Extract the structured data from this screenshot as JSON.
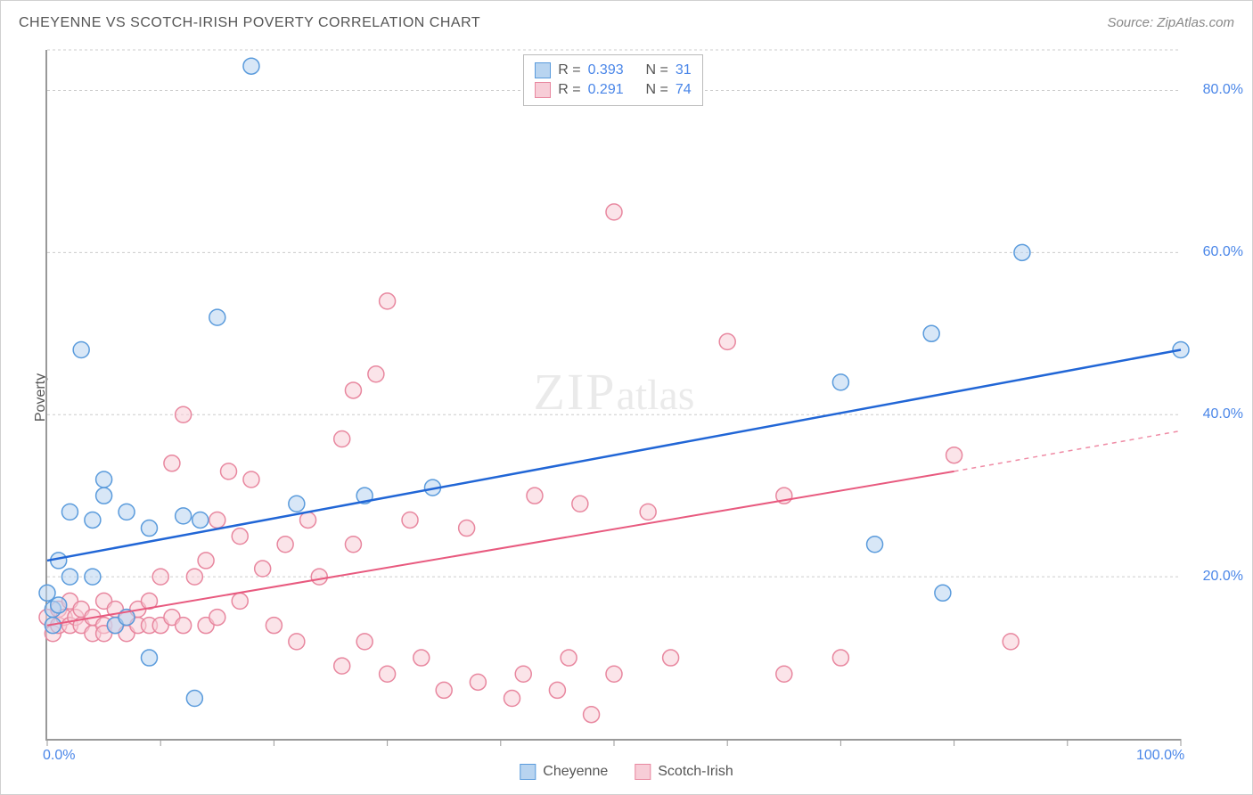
{
  "title": "CHEYENNE VS SCOTCH-IRISH POVERTY CORRELATION CHART",
  "source": "Source: ZipAtlas.com",
  "ylabel": "Poverty",
  "watermark_zip": "ZIP",
  "watermark_atlas": "atlas",
  "chart": {
    "type": "scatter",
    "background_color": "#ffffff",
    "grid_color": "#cccccc",
    "axis_color": "#999999",
    "xlim": [
      0,
      100
    ],
    "ylim": [
      0,
      85
    ],
    "xtick_labels": {
      "0": "0.0%",
      "100": "100.0%"
    },
    "xtick_positions": [
      0,
      10,
      20,
      30,
      40,
      50,
      60,
      70,
      80,
      90,
      100
    ],
    "ytick_labels": {
      "20": "20.0%",
      "40": "40.0%",
      "60": "60.0%",
      "80": "80.0%"
    },
    "ytick_positions": [
      20,
      40,
      60,
      80
    ],
    "marker_radius": 9,
    "marker_opacity": 0.55,
    "series": [
      {
        "name": "Cheyenne",
        "color_fill": "#b8d4f0",
        "color_stroke": "#5a9bdc",
        "R": "0.393",
        "N": "31",
        "trend": {
          "x1": 0,
          "y1": 22,
          "x2": 100,
          "y2": 48,
          "stroke": "#2166d6",
          "width": 2.5,
          "dash_extend": false
        },
        "points": [
          [
            0,
            18
          ],
          [
            0.5,
            16
          ],
          [
            0.5,
            14
          ],
          [
            1,
            22
          ],
          [
            1,
            16.5
          ],
          [
            2,
            28
          ],
          [
            2,
            20
          ],
          [
            3,
            48
          ],
          [
            4,
            27
          ],
          [
            4,
            20
          ],
          [
            5,
            32
          ],
          [
            5,
            30
          ],
          [
            6,
            14
          ],
          [
            7,
            28
          ],
          [
            7,
            15
          ],
          [
            9,
            10
          ],
          [
            9,
            26
          ],
          [
            12,
            27.5
          ],
          [
            13,
            5
          ],
          [
            13.5,
            27
          ],
          [
            15,
            52
          ],
          [
            18,
            83
          ],
          [
            22,
            29
          ],
          [
            28,
            30
          ],
          [
            34,
            31
          ],
          [
            70,
            44
          ],
          [
            73,
            24
          ],
          [
            78,
            50
          ],
          [
            79,
            18
          ],
          [
            86,
            60
          ],
          [
            100,
            48
          ]
        ]
      },
      {
        "name": "Scotch-Irish",
        "color_fill": "#f7cdd7",
        "color_stroke": "#e8879f",
        "R": "0.291",
        "N": "74",
        "trend": {
          "x1": 0,
          "y1": 14,
          "x2": 80,
          "y2": 33,
          "stroke": "#e85a7f",
          "width": 2,
          "dash_extend": true,
          "dash_x2": 100,
          "dash_y2": 38
        },
        "points": [
          [
            0,
            15
          ],
          [
            0.5,
            13
          ],
          [
            1,
            14
          ],
          [
            1,
            16
          ],
          [
            1.5,
            15
          ],
          [
            2,
            14
          ],
          [
            2,
            17
          ],
          [
            2.5,
            15
          ],
          [
            3,
            14
          ],
          [
            3,
            16
          ],
          [
            4,
            13
          ],
          [
            4,
            15
          ],
          [
            5,
            14
          ],
          [
            5,
            17
          ],
          [
            5,
            13
          ],
          [
            6,
            14
          ],
          [
            6,
            16
          ],
          [
            7,
            15
          ],
          [
            7,
            13
          ],
          [
            8,
            14
          ],
          [
            8,
            16
          ],
          [
            9,
            14
          ],
          [
            9,
            17
          ],
          [
            10,
            14
          ],
          [
            10,
            20
          ],
          [
            11,
            15
          ],
          [
            11,
            34
          ],
          [
            12,
            14
          ],
          [
            12,
            40
          ],
          [
            13,
            20
          ],
          [
            14,
            14
          ],
          [
            14,
            22
          ],
          [
            15,
            27
          ],
          [
            15,
            15
          ],
          [
            16,
            33
          ],
          [
            17,
            17
          ],
          [
            17,
            25
          ],
          [
            18,
            32
          ],
          [
            19,
            21
          ],
          [
            20,
            14
          ],
          [
            21,
            24
          ],
          [
            22,
            12
          ],
          [
            23,
            27
          ],
          [
            24,
            20
          ],
          [
            26,
            37
          ],
          [
            26,
            9
          ],
          [
            27,
            43
          ],
          [
            27,
            24
          ],
          [
            28,
            12
          ],
          [
            29,
            45
          ],
          [
            30,
            54
          ],
          [
            30,
            8
          ],
          [
            32,
            27
          ],
          [
            33,
            10
          ],
          [
            35,
            6
          ],
          [
            37,
            26
          ],
          [
            38,
            7
          ],
          [
            41,
            5
          ],
          [
            42,
            8
          ],
          [
            43,
            30
          ],
          [
            45,
            6
          ],
          [
            46,
            10
          ],
          [
            47,
            29
          ],
          [
            48,
            3
          ],
          [
            50,
            65
          ],
          [
            50,
            8
          ],
          [
            53,
            28
          ],
          [
            55,
            10
          ],
          [
            60,
            49
          ],
          [
            65,
            8
          ],
          [
            65,
            30
          ],
          [
            70,
            10
          ],
          [
            80,
            35
          ],
          [
            85,
            12
          ]
        ]
      }
    ]
  },
  "legend_bottom": [
    {
      "label": "Cheyenne",
      "fill": "#b8d4f0",
      "stroke": "#5a9bdc"
    },
    {
      "label": "Scotch-Irish",
      "fill": "#f7cdd7",
      "stroke": "#e8879f"
    }
  ]
}
